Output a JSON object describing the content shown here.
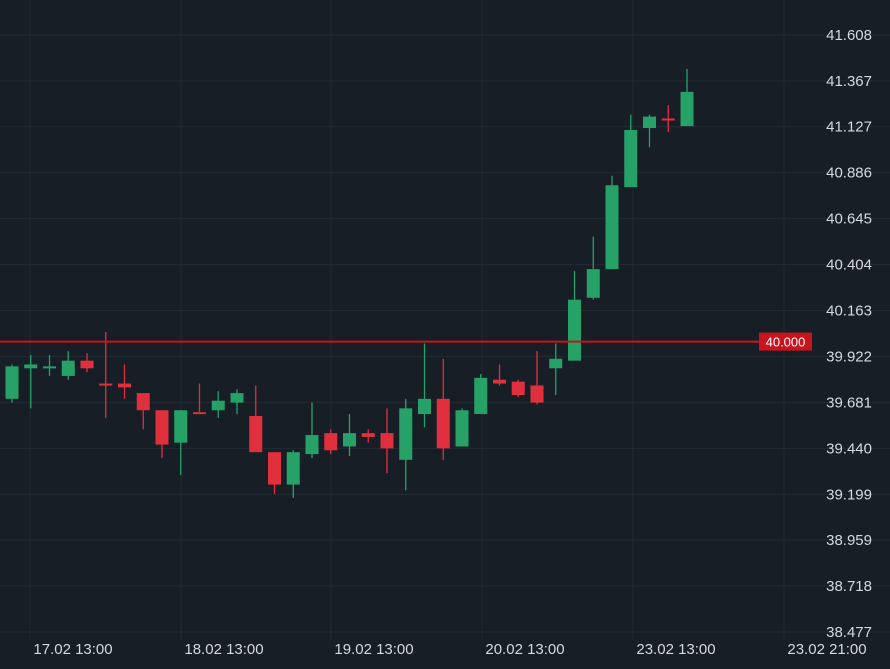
{
  "chart_data": {
    "type": "candlestick",
    "x_tick_labels": [
      "17.02 13:00",
      "18.02 13:00",
      "19.02 13:00",
      "20.02 13:00",
      "23.02 13:00",
      "23.02 21:00"
    ],
    "y_tick_labels": [
      "41.608",
      "41.367",
      "41.127",
      "40.886",
      "40.645",
      "40.404",
      "40.163",
      "39.922",
      "39.681",
      "39.440",
      "39.199",
      "38.959",
      "38.718",
      "38.477"
    ],
    "ylim": [
      38.477,
      41.608
    ],
    "grid": true,
    "reference_line": {
      "value": 40.0,
      "label": "40.000",
      "color": "#c8141c"
    },
    "colors": {
      "up": "#26a269",
      "down": "#e0303e",
      "background": "#171e25",
      "grid": "#222b34",
      "text": "#d6d9dc"
    },
    "candles": [
      {
        "o": 39.7,
        "h": 39.88,
        "l": 39.68,
        "c": 39.87
      },
      {
        "o": 39.86,
        "h": 39.93,
        "l": 39.65,
        "c": 39.88
      },
      {
        "o": 39.86,
        "h": 39.93,
        "l": 39.82,
        "c": 39.87
      },
      {
        "o": 39.82,
        "h": 39.95,
        "l": 39.8,
        "c": 39.9
      },
      {
        "o": 39.9,
        "h": 39.94,
        "l": 39.84,
        "c": 39.86
      },
      {
        "o": 39.78,
        "h": 40.05,
        "l": 39.6,
        "c": 39.77
      },
      {
        "o": 39.78,
        "h": 39.88,
        "l": 39.7,
        "c": 39.76
      },
      {
        "o": 39.73,
        "h": 39.73,
        "l": 39.54,
        "c": 39.64
      },
      {
        "o": 39.64,
        "h": 39.64,
        "l": 39.39,
        "c": 39.46
      },
      {
        "o": 39.47,
        "h": 39.64,
        "l": 39.3,
        "c": 39.64
      },
      {
        "o": 39.63,
        "h": 39.78,
        "l": 39.63,
        "c": 39.62
      },
      {
        "o": 39.64,
        "h": 39.74,
        "l": 39.6,
        "c": 39.69
      },
      {
        "o": 39.68,
        "h": 39.75,
        "l": 39.62,
        "c": 39.73
      },
      {
        "o": 39.61,
        "h": 39.77,
        "l": 39.43,
        "c": 39.42
      },
      {
        "o": 39.42,
        "h": 39.42,
        "l": 39.2,
        "c": 39.25
      },
      {
        "o": 39.25,
        "h": 39.43,
        "l": 39.18,
        "c": 39.42
      },
      {
        "o": 39.41,
        "h": 39.68,
        "l": 39.39,
        "c": 39.51
      },
      {
        "o": 39.52,
        "h": 39.54,
        "l": 39.41,
        "c": 39.43
      },
      {
        "o": 39.45,
        "h": 39.62,
        "l": 39.4,
        "c": 39.52
      },
      {
        "o": 39.52,
        "h": 39.54,
        "l": 39.47,
        "c": 39.5
      },
      {
        "o": 39.52,
        "h": 39.65,
        "l": 39.31,
        "c": 39.44
      },
      {
        "o": 39.38,
        "h": 39.7,
        "l": 39.22,
        "c": 39.65
      },
      {
        "o": 39.62,
        "h": 39.99,
        "l": 39.55,
        "c": 39.7
      },
      {
        "o": 39.7,
        "h": 39.91,
        "l": 39.38,
        "c": 39.44
      },
      {
        "o": 39.45,
        "h": 39.65,
        "l": 39.45,
        "c": 39.64
      },
      {
        "o": 39.62,
        "h": 39.83,
        "l": 39.62,
        "c": 39.81
      },
      {
        "o": 39.8,
        "h": 39.88,
        "l": 39.77,
        "c": 39.78
      },
      {
        "o": 39.79,
        "h": 39.8,
        "l": 39.71,
        "c": 39.72
      },
      {
        "o": 39.77,
        "h": 39.95,
        "l": 39.67,
        "c": 39.68
      },
      {
        "o": 39.86,
        "h": 39.99,
        "l": 39.72,
        "c": 39.91
      },
      {
        "o": 39.9,
        "h": 40.37,
        "l": 39.9,
        "c": 40.22
      },
      {
        "o": 40.23,
        "h": 40.55,
        "l": 40.22,
        "c": 40.38
      },
      {
        "o": 40.38,
        "h": 40.87,
        "l": 40.38,
        "c": 40.82
      },
      {
        "o": 40.81,
        "h": 41.19,
        "l": 40.81,
        "c": 41.11
      },
      {
        "o": 41.12,
        "h": 41.19,
        "l": 41.02,
        "c": 41.18
      },
      {
        "o": 41.17,
        "h": 41.24,
        "l": 41.1,
        "c": 41.16
      },
      {
        "o": 41.13,
        "h": 41.43,
        "l": 41.13,
        "c": 41.31
      }
    ]
  }
}
